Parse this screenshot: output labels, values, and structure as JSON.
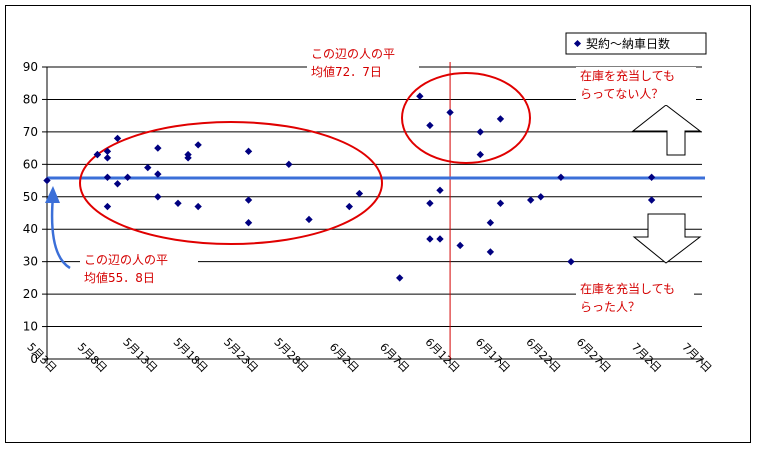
{
  "chart_data": {
    "type": "scatter",
    "series": [
      {
        "name": "契約～納車日数",
        "color": "#000080",
        "points": [
          [
            "5月3日",
            55
          ],
          [
            "5月8日",
            63
          ],
          [
            "5月8日",
            63
          ],
          [
            "5月9日",
            64
          ],
          [
            "5月9日",
            62
          ],
          [
            "5月9日",
            56
          ],
          [
            "5月9日",
            47
          ],
          [
            "5月10日",
            68
          ],
          [
            "5月10日",
            54
          ],
          [
            "5月11日",
            56
          ],
          [
            "5月13日",
            59
          ],
          [
            "5月14日",
            65
          ],
          [
            "5月14日",
            57
          ],
          [
            "5月14日",
            50
          ],
          [
            "5月16日",
            48
          ],
          [
            "5月17日",
            63
          ],
          [
            "5月17日",
            62
          ],
          [
            "5月18日",
            66
          ],
          [
            "5月18日",
            47
          ],
          [
            "5月23日",
            64
          ],
          [
            "5月23日",
            49
          ],
          [
            "5月23日",
            42
          ],
          [
            "5月27日",
            60
          ],
          [
            "5月29日",
            43
          ],
          [
            "6月2日",
            47
          ],
          [
            "6月3日",
            51
          ],
          [
            "6月7日",
            25
          ],
          [
            "6月9日",
            81
          ],
          [
            "6月10日",
            72
          ],
          [
            "6月10日",
            48
          ],
          [
            "6月10日",
            37
          ],
          [
            "6月11日",
            52
          ],
          [
            "6月11日",
            37
          ],
          [
            "6月12日",
            76
          ],
          [
            "6月13日",
            35
          ],
          [
            "6月15日",
            70
          ],
          [
            "6月15日",
            63
          ],
          [
            "6月16日",
            42
          ],
          [
            "6月16日",
            33
          ],
          [
            "6月17日",
            74
          ],
          [
            "6月17日",
            48
          ],
          [
            "6月20日",
            49
          ],
          [
            "6月21日",
            50
          ],
          [
            "6月23日",
            56
          ],
          [
            "6月24日",
            30
          ],
          [
            "7月2日",
            56
          ],
          [
            "7月2日",
            49
          ]
        ]
      }
    ],
    "x_ticks": [
      "5月3日",
      "5月8日",
      "5月13日",
      "5月18日",
      "5月23日",
      "5月28日",
      "6月2日",
      "6月7日",
      "6月12日",
      "6月17日",
      "6月22日",
      "6月27日",
      "7月2日",
      "7月7日"
    ],
    "y_ticks": [
      "0",
      "10",
      "20",
      "30",
      "40",
      "50",
      "60",
      "70",
      "80",
      "90"
    ],
    "ylim": [
      0,
      90
    ],
    "xlim": [
      "5月3日",
      "7月7日"
    ],
    "grid": "horizontal",
    "legend_position": "top-right",
    "average_line": {
      "value": 55.8,
      "color": "#3b6fd8"
    },
    "divider_line": {
      "x": "6月12日",
      "color": "#d40000"
    },
    "annotations": {
      "left_note": [
        "この辺の人の平",
        "均値55．8日"
      ],
      "right_note": [
        "この辺の人の平",
        "均値72．7日"
      ],
      "upper_note": [
        "在庫を充当しても",
        "らってない人？"
      ],
      "lower_note": [
        "在庫を充当しても",
        "らった人？"
      ]
    }
  }
}
